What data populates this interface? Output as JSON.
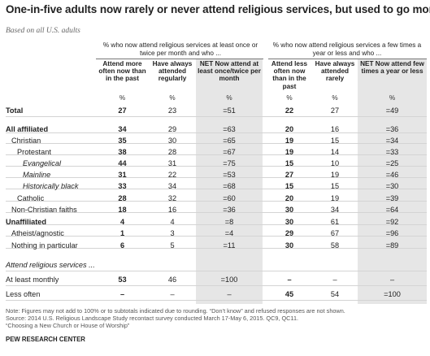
{
  "title": "One-in-five adults now rarely or never attend religious services, but used to go more",
  "subtitle": "Based on all U.S. adults",
  "group1": {
    "header": "% who now attend religious services at least once or twice per month and who ...",
    "cols": [
      "Attend more often now than in the past",
      "Have always attended regularly",
      "NET Now attend at least once/twice per month"
    ]
  },
  "group2": {
    "header": "% who now attend religious services a few times a year or less and who ...",
    "cols": [
      "Attend less often now than in the past",
      "Have always attended rarely",
      "NET Now attend few times a year or less"
    ]
  },
  "pct_symbol": "%",
  "rows": [
    {
      "label": "Total",
      "v": [
        "27",
        "23",
        "=51",
        "22",
        "27",
        "=49"
      ]
    },
    {
      "label": "All affiliated",
      "v": [
        "34",
        "29",
        "=63",
        "20",
        "16",
        "=36"
      ]
    },
    {
      "label": "Christian",
      "v": [
        "35",
        "30",
        "=65",
        "19",
        "15",
        "=34"
      ]
    },
    {
      "label": "Protestant",
      "v": [
        "38",
        "28",
        "=67",
        "19",
        "14",
        "=33"
      ]
    },
    {
      "label": "Evangelical",
      "v": [
        "44",
        "31",
        "=75",
        "15",
        "10",
        "=25"
      ]
    },
    {
      "label": "Mainline",
      "v": [
        "31",
        "22",
        "=53",
        "27",
        "19",
        "=46"
      ]
    },
    {
      "label": "Historically black",
      "v": [
        "33",
        "34",
        "=68",
        "15",
        "15",
        "=30"
      ]
    },
    {
      "label": "Catholic",
      "v": [
        "28",
        "32",
        "=60",
        "20",
        "19",
        "=39"
      ]
    },
    {
      "label": "Non-Christian faiths",
      "v": [
        "18",
        "16",
        "=36",
        "30",
        "34",
        "=64"
      ]
    },
    {
      "label": "Unaffiliated",
      "v": [
        "4",
        "4",
        "=8",
        "30",
        "61",
        "=92"
      ]
    },
    {
      "label": "Atheist/agnostic",
      "v": [
        "1",
        "3",
        "=4",
        "29",
        "67",
        "=96"
      ]
    },
    {
      "label": "Nothing in particular",
      "v": [
        "6",
        "5",
        "=11",
        "30",
        "58",
        "=89"
      ]
    },
    {
      "label": "Attend religious services ...",
      "v": [
        "",
        "",
        "",
        "",
        "",
        ""
      ]
    },
    {
      "label": "At least monthly",
      "v": [
        "53",
        "46",
        "=100",
        "–",
        "–",
        "–"
      ]
    },
    {
      "label": "Less often",
      "v": [
        "–",
        "–",
        "–",
        "45",
        "54",
        "=100"
      ]
    }
  ],
  "notes": [
    "Note: Figures may not add to 100% or to subtotals indicated due to rounding. “Don’t know” and refused responses are not shown.",
    "Source: 2014 U.S. Religious Landscape Study recontact survey conducted March 17-May 6, 2015. QC9, QC11.",
    "“Choosing a New Church or House of Worship”"
  ],
  "brand": "PEW RESEARCH CENTER"
}
